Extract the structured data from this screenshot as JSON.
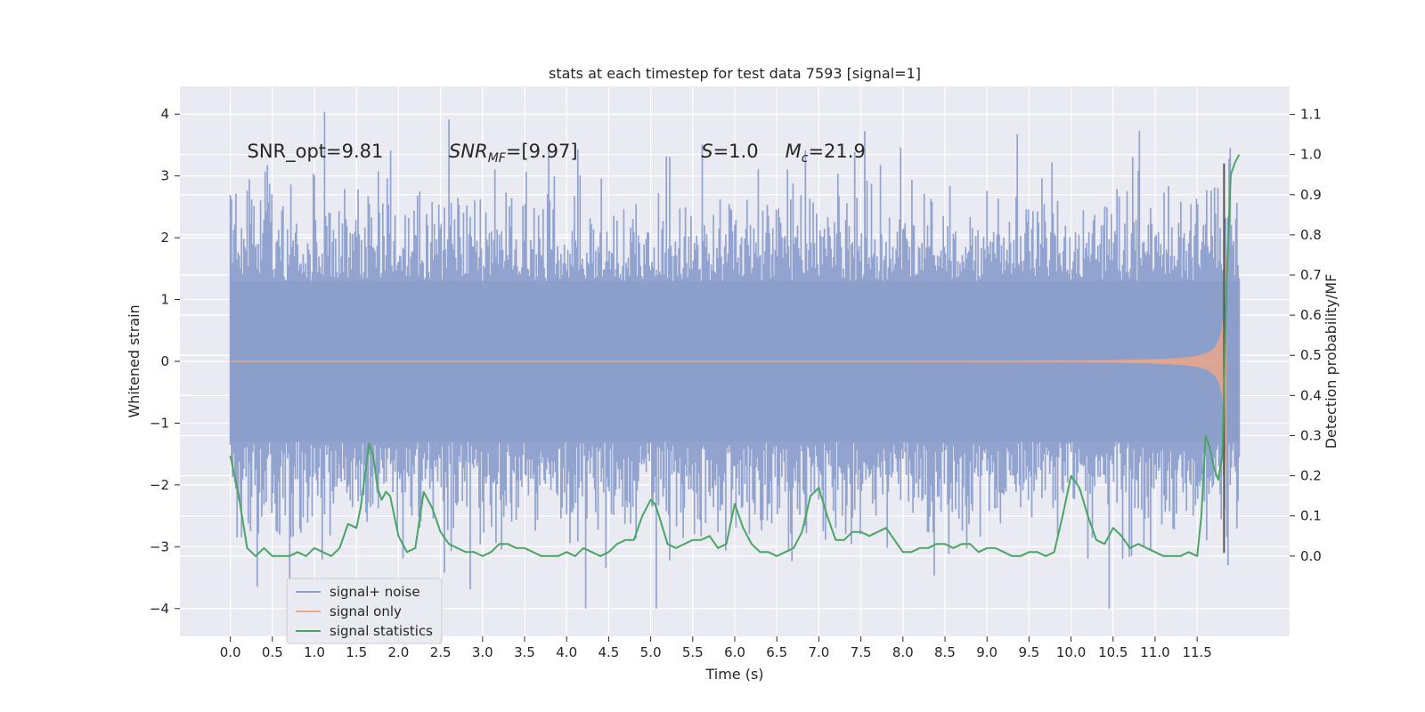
{
  "chart_data": {
    "type": "line",
    "title": "stats at each timestep for test data 7593 [signal=1]",
    "xlabel": "Time (s)",
    "ylabel_left": "Whitened strain",
    "ylabel_right": "Detection probability/MF",
    "xlim": [
      -0.6,
      12.6
    ],
    "ylim_left": [
      -4.45,
      4.45
    ],
    "ylim_right": [
      -0.2,
      1.17
    ],
    "x_ticks": [
      "0.0",
      "0.5",
      "1.0",
      "1.5",
      "2.0",
      "2.5",
      "3.0",
      "3.5",
      "4.0",
      "4.5",
      "5.0",
      "5.5",
      "6.0",
      "6.5",
      "7.0",
      "7.5",
      "8.0",
      "8.5",
      "9.0",
      "9.5",
      "10.0",
      "10.5",
      "11.0",
      "11.5"
    ],
    "x_tick_values": [
      0,
      0.5,
      1,
      1.5,
      2,
      2.5,
      3,
      3.5,
      4,
      4.5,
      5,
      5.5,
      6,
      6.5,
      7,
      7.5,
      8,
      8.5,
      9,
      9.5,
      10,
      10.5,
      11,
      11.5
    ],
    "y_ticks_left": [
      "4",
      "3",
      "2",
      "1",
      "0",
      "−1",
      "−2",
      "−3",
      "−4"
    ],
    "y_tick_values_left": [
      4,
      3,
      2,
      1,
      0,
      -1,
      -2,
      -3,
      -4
    ],
    "y_ticks_right": [
      "1.1",
      "1.0",
      "0.9",
      "0.8",
      "0.7",
      "0.6",
      "0.5",
      "0.4",
      "0.3",
      "0.2",
      "0.1",
      "0.0"
    ],
    "y_tick_values_right": [
      1.1,
      1.0,
      0.9,
      0.8,
      0.7,
      0.6,
      0.5,
      0.4,
      0.3,
      0.2,
      0.1,
      0.0
    ],
    "grid": true,
    "legend_position": "lower-left",
    "annotations": [
      {
        "text": "SNR_opt=9.81",
        "x": 0.2,
        "y": 3.3
      },
      {
        "text": "SNR_MF=[9.97]",
        "x": 2.6,
        "y": 3.3
      },
      {
        "text": "S=1.0",
        "x": 5.6,
        "y": 3.3
      },
      {
        "text": "M_c=21.9",
        "x": 6.6,
        "y": 3.3
      }
    ],
    "vertical_marker": {
      "x": 11.82,
      "y_range": [
        -3.1,
        3.2
      ],
      "color": "#555555"
    },
    "series": [
      {
        "name": "signal+ noise",
        "color": "#8c9fcb",
        "axis": "left",
        "kind": "dense-noise",
        "x_range": [
          0.0,
          12.0
        ],
        "approx_envelope": {
          "core_abs": 1.3,
          "typical_abs": 2.3,
          "max": 4.1,
          "min": -4.0
        }
      },
      {
        "name": "signal only",
        "color": "#e8a68a",
        "axis": "left",
        "kind": "chirp",
        "x_range": [
          0.0,
          11.85
        ],
        "approx_peak": 2.2,
        "peak_time": 11.7
      },
      {
        "name": "signal statistics",
        "color": "#4aa564",
        "axis": "right",
        "x": [
          0.0,
          0.1,
          0.2,
          0.3,
          0.4,
          0.5,
          0.6,
          0.7,
          0.8,
          0.9,
          1.0,
          1.1,
          1.2,
          1.3,
          1.4,
          1.5,
          1.55,
          1.6,
          1.65,
          1.7,
          1.75,
          1.8,
          1.85,
          1.9,
          2.0,
          2.1,
          2.2,
          2.3,
          2.4,
          2.5,
          2.6,
          2.7,
          2.8,
          2.9,
          3.0,
          3.1,
          3.2,
          3.3,
          3.4,
          3.5,
          3.6,
          3.7,
          3.8,
          3.9,
          4.0,
          4.1,
          4.2,
          4.3,
          4.4,
          4.5,
          4.6,
          4.7,
          4.8,
          4.9,
          5.0,
          5.05,
          5.1,
          5.2,
          5.3,
          5.4,
          5.5,
          5.6,
          5.7,
          5.8,
          5.9,
          6.0,
          6.1,
          6.2,
          6.3,
          6.4,
          6.5,
          6.6,
          6.7,
          6.8,
          6.9,
          7.0,
          7.1,
          7.2,
          7.3,
          7.4,
          7.5,
          7.6,
          7.7,
          7.8,
          7.9,
          8.0,
          8.1,
          8.2,
          8.3,
          8.4,
          8.5,
          8.6,
          8.7,
          8.8,
          8.9,
          9.0,
          9.1,
          9.2,
          9.3,
          9.4,
          9.5,
          9.6,
          9.7,
          9.8,
          9.9,
          10.0,
          10.1,
          10.2,
          10.3,
          10.4,
          10.5,
          10.6,
          10.7,
          10.8,
          10.9,
          11.0,
          11.1,
          11.2,
          11.3,
          11.4,
          11.5,
          11.55,
          11.6,
          11.65,
          11.7,
          11.75,
          11.8,
          11.85,
          11.9,
          11.95,
          12.0
        ],
        "y": [
          0.25,
          0.15,
          0.02,
          0.0,
          0.02,
          0.0,
          0.0,
          0.0,
          0.01,
          0.0,
          0.02,
          0.01,
          0.0,
          0.02,
          0.08,
          0.07,
          0.12,
          0.2,
          0.28,
          0.25,
          0.17,
          0.14,
          0.16,
          0.15,
          0.05,
          0.01,
          0.02,
          0.16,
          0.12,
          0.06,
          0.03,
          0.02,
          0.01,
          0.01,
          0.0,
          0.01,
          0.03,
          0.03,
          0.02,
          0.02,
          0.01,
          0.0,
          0.0,
          0.0,
          0.01,
          0.0,
          0.02,
          0.01,
          0.0,
          0.01,
          0.03,
          0.04,
          0.04,
          0.1,
          0.14,
          0.13,
          0.1,
          0.03,
          0.02,
          0.03,
          0.04,
          0.04,
          0.05,
          0.02,
          0.03,
          0.13,
          0.07,
          0.03,
          0.01,
          0.01,
          0.0,
          0.01,
          0.02,
          0.06,
          0.15,
          0.17,
          0.1,
          0.04,
          0.04,
          0.06,
          0.06,
          0.05,
          0.06,
          0.07,
          0.04,
          0.01,
          0.01,
          0.02,
          0.02,
          0.03,
          0.03,
          0.02,
          0.03,
          0.03,
          0.01,
          0.02,
          0.02,
          0.01,
          0.0,
          0.0,
          0.01,
          0.01,
          0.0,
          0.01,
          0.1,
          0.2,
          0.17,
          0.1,
          0.04,
          0.03,
          0.07,
          0.05,
          0.02,
          0.03,
          0.02,
          0.01,
          0.0,
          0.0,
          0.0,
          0.01,
          0.0,
          0.1,
          0.3,
          0.27,
          0.22,
          0.19,
          0.25,
          0.68,
          0.95,
          0.98,
          1.0
        ]
      }
    ]
  }
}
